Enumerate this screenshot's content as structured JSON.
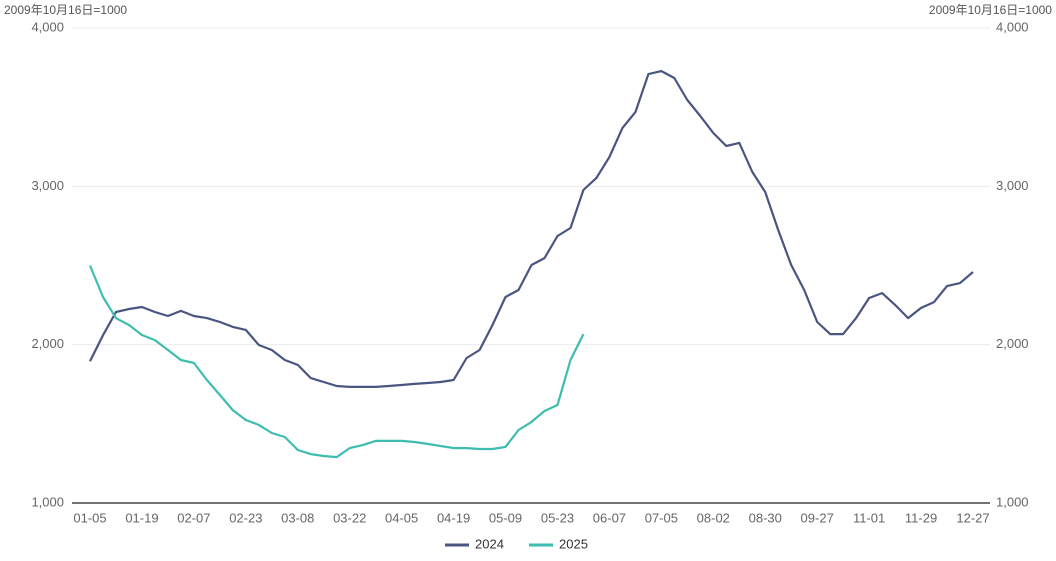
{
  "chart_data": {
    "type": "line",
    "y_axis_label": "2009年10月16日=1000",
    "y2_axis_label": "2009年10月16日=1000",
    "categories": [
      "01-05",
      null,
      null,
      null,
      "01-19",
      null,
      null,
      null,
      "02-07",
      null,
      null,
      null,
      "02-23",
      null,
      null,
      null,
      "03-08",
      null,
      null,
      null,
      "03-22",
      null,
      null,
      null,
      "04-05",
      null,
      null,
      null,
      "04-19",
      null,
      null,
      null,
      "05-09",
      null,
      null,
      null,
      "05-23",
      null,
      null,
      null,
      "06-07",
      null,
      null,
      null,
      "07-05",
      null,
      null,
      null,
      "08-02",
      null,
      null,
      null,
      "08-30",
      null,
      null,
      null,
      "09-27",
      null,
      null,
      null,
      "11-01",
      null,
      null,
      null,
      "11-29",
      null,
      null,
      null,
      "12-27"
    ],
    "series": [
      {
        "name": "2024",
        "color": "#4a5580",
        "values": [
          1895,
          2060,
          2206,
          2225,
          2238,
          2206,
          2181,
          2213,
          2181,
          2168,
          2143,
          2112,
          2093,
          1998,
          1966,
          1903,
          1872,
          1789,
          1764,
          1739,
          1733,
          1733,
          1733,
          1739,
          1745,
          1752,
          1758,
          1764,
          1777,
          1916,
          1966,
          2124,
          2301,
          2345,
          2503,
          2547,
          2686,
          2737,
          2977,
          3053,
          3185,
          3368,
          3469,
          3709,
          3728,
          3684,
          3545,
          3444,
          3337,
          3255,
          3274,
          3091,
          2964,
          2724,
          2503,
          2345,
          2143,
          2067,
          2067,
          2168,
          2295,
          2326,
          2251,
          2168,
          2232,
          2269,
          2370,
          2389,
          2459
        ]
      },
      {
        "name": "2025",
        "color": "#3dbdb0",
        "values": [
          2500,
          2301,
          2168,
          2124,
          2061,
          2029,
          1966,
          1903,
          1884,
          1777,
          1682,
          1587,
          1524,
          1493,
          1442,
          1417,
          1335,
          1309,
          1297,
          1290,
          1347,
          1366,
          1392,
          1392,
          1392,
          1385,
          1373,
          1360,
          1347,
          1347,
          1341,
          1341,
          1354,
          1461,
          1512,
          1581,
          1619,
          1903,
          2067,
          null,
          null,
          null,
          null,
          null,
          null,
          null,
          null,
          null,
          null,
          null,
          null,
          null,
          null,
          null,
          null,
          null,
          null,
          null,
          null,
          null,
          null,
          null,
          null,
          null,
          null,
          null,
          null,
          null,
          null
        ]
      }
    ],
    "ylim": [
      1000,
      4000
    ],
    "yticks": [
      {
        "value": 1000,
        "label": "1,000"
      },
      {
        "value": 2000,
        "label": "2,000"
      },
      {
        "value": 3000,
        "label": "3,000"
      },
      {
        "value": 4000,
        "label": "4,000"
      }
    ],
    "y2lim": [
      1000,
      4000
    ],
    "y2ticks": [
      {
        "value": 1000,
        "label": "1,000"
      },
      {
        "value": 2000,
        "label": "2,000"
      },
      {
        "value": 3000,
        "label": "3,000"
      },
      {
        "value": 4000,
        "label": "4,000"
      }
    ],
    "grid": true,
    "legend": "bottom"
  }
}
